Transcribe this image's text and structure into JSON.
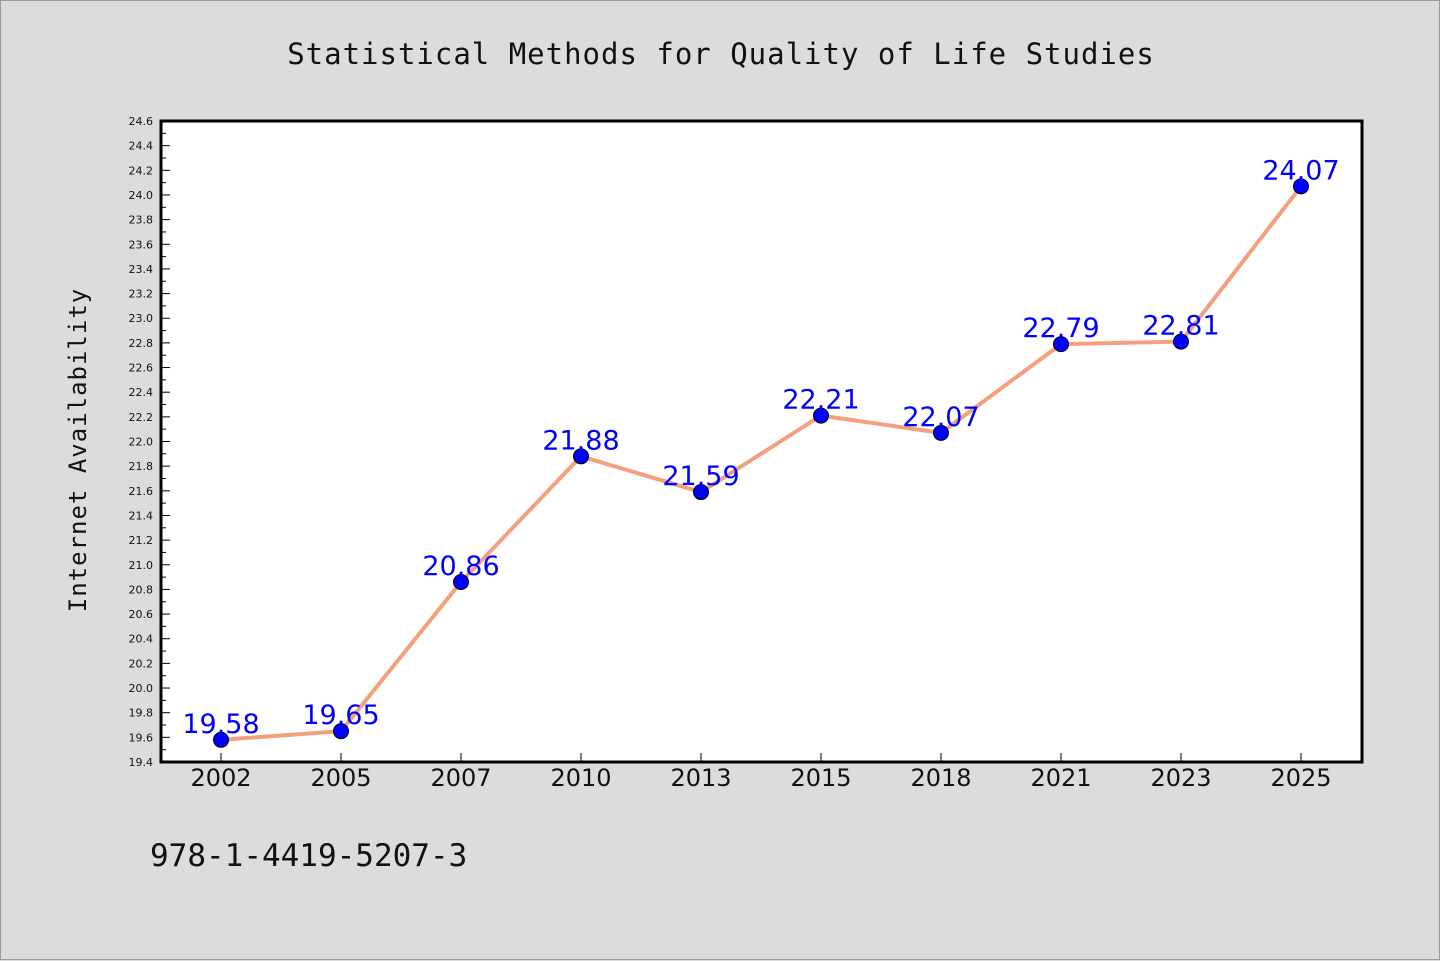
{
  "chart_data": {
    "type": "line",
    "title": "Statistical Methods for Quality of Life Studies",
    "xlabel": "",
    "ylabel": "Internet Availability",
    "categories": [
      "2002",
      "2005",
      "2007",
      "2010",
      "2013",
      "2015",
      "2018",
      "2021",
      "2023",
      "2025"
    ],
    "series": [
      {
        "values": [
          19.58,
          19.65,
          20.86,
          21.88,
          21.59,
          22.21,
          22.07,
          22.79,
          22.81,
          24.07
        ],
        "labels": [
          "19.58",
          "19.65",
          "20.86",
          "21.88",
          "21.59",
          "22.21",
          "22.07",
          "22.79",
          "22.81",
          "24.07"
        ],
        "line_color": "#f4a07e",
        "marker_color": "#0000ff"
      }
    ],
    "ylim": [
      19.4,
      24.6
    ],
    "yticks": [
      "19.4",
      "19.6",
      "19.8",
      "20.0",
      "20.2",
      "20.4",
      "20.6",
      "20.8",
      "21.0",
      "21.2",
      "21.4",
      "21.6",
      "21.8",
      "22.0",
      "22.2",
      "22.4",
      "22.6",
      "22.8",
      "23.0",
      "23.2",
      "23.4",
      "23.6",
      "23.8",
      "24.0",
      "24.2",
      "24.4",
      "24.6"
    ],
    "grid": false,
    "legend": "none"
  },
  "footer": {
    "isbn": "978-1-4419-5207-3"
  },
  "colors": {
    "background": "#dcdcdc",
    "plot_background": "#ffffff",
    "line": "#f4a07e",
    "marker": "#0000ff",
    "data_label": "#0000ff"
  }
}
